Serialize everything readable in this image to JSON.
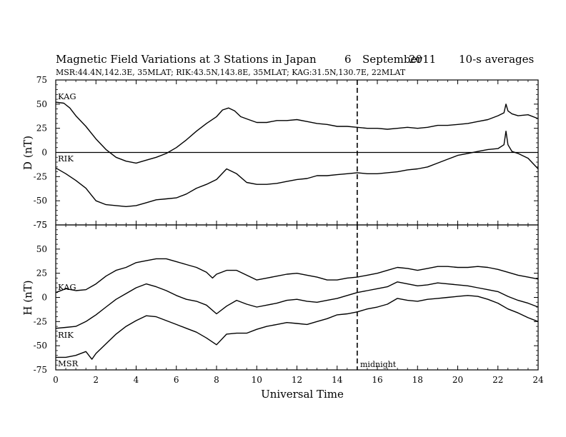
{
  "title": {
    "main": "Magnetic Field Variations at 3 Stations in Japan",
    "day": "6",
    "month": "September",
    "year": "2011",
    "note": "10-s averages"
  },
  "subtitle": "MSR:44.4N,142.3E, 35MLAT;  RIK:43.5N,143.8E, 35MLAT;  KAG:31.5N,130.7E, 22MLAT",
  "xlabel": "Universal Time",
  "annotation": "midnight",
  "colors": {
    "line": "#000000",
    "background": "#ffffff"
  },
  "chart_data": [
    {
      "type": "line",
      "ylabel": "D (nT)",
      "xlim": [
        0,
        24
      ],
      "ylim": [
        -75,
        75
      ],
      "xticks": [
        0,
        2,
        4,
        6,
        8,
        10,
        12,
        14,
        16,
        18,
        20,
        22,
        24
      ],
      "yticks": [
        -75,
        -50,
        -25,
        0,
        25,
        50,
        75
      ],
      "zero_line": true,
      "vline_x": 15,
      "series": [
        {
          "name": "KAG",
          "x": [
            0,
            0.4,
            0.7,
            1.0,
            1.5,
            2.0,
            2.5,
            3.0,
            3.5,
            4.0,
            4.5,
            5.0,
            5.5,
            6.0,
            6.5,
            7.0,
            7.5,
            8.0,
            8.3,
            8.6,
            8.9,
            9.2,
            9.6,
            10.0,
            10.5,
            11.0,
            11.5,
            12.0,
            12.5,
            13.0,
            13.5,
            14.0,
            14.5,
            15.0,
            15.5,
            16.0,
            16.5,
            17.0,
            17.5,
            18.0,
            18.5,
            19.0,
            19.5,
            20.0,
            20.5,
            21.0,
            21.5,
            22.0,
            22.3,
            22.4,
            22.5,
            22.7,
            23.0,
            23.5,
            24.0
          ],
          "y": [
            52,
            51,
            46,
            38,
            27,
            14,
            3,
            -5,
            -9,
            -11,
            -8,
            -5,
            -1,
            5,
            13,
            22,
            30,
            37,
            44,
            46,
            43,
            37,
            34,
            31,
            31,
            33,
            33,
            34,
            32,
            30,
            29,
            27,
            27,
            26,
            25,
            25,
            24,
            25,
            26,
            25,
            26,
            28,
            28,
            29,
            30,
            32,
            34,
            38,
            41,
            50,
            43,
            40,
            38,
            39,
            35
          ]
        },
        {
          "name": "RIK",
          "x": [
            0,
            0.5,
            1.0,
            1.5,
            2.0,
            2.5,
            3.0,
            3.5,
            4.0,
            4.5,
            5.0,
            5.5,
            6.0,
            6.5,
            7.0,
            7.5,
            8.0,
            8.5,
            9.0,
            9.5,
            10.0,
            10.5,
            11.0,
            11.5,
            12.0,
            12.5,
            13.0,
            13.5,
            14.0,
            14.5,
            15.0,
            15.5,
            16.0,
            16.5,
            17.0,
            17.5,
            18.0,
            18.5,
            19.0,
            19.5,
            20.0,
            20.5,
            21.0,
            21.5,
            22.0,
            22.3,
            22.4,
            22.5,
            22.7,
            23.0,
            23.5,
            24.0
          ],
          "y": [
            -16,
            -22,
            -29,
            -37,
            -50,
            -54,
            -55,
            -56,
            -55,
            -52,
            -49,
            -48,
            -47,
            -43,
            -37,
            -33,
            -28,
            -17,
            -22,
            -31,
            -33,
            -33,
            -32,
            -30,
            -28,
            -27,
            -24,
            -24,
            -23,
            -22,
            -21,
            -22,
            -22,
            -21,
            -20,
            -18,
            -17,
            -15,
            -11,
            -7,
            -3,
            -1,
            1,
            3,
            4,
            8,
            22,
            8,
            1,
            -1,
            -6,
            -17
          ]
        }
      ]
    },
    {
      "type": "line",
      "ylabel": "H (nT)",
      "xlim": [
        0,
        24
      ],
      "ylim": [
        -75,
        75
      ],
      "xticks": [
        0,
        2,
        4,
        6,
        8,
        10,
        12,
        14,
        16,
        18,
        20,
        22,
        24
      ],
      "xtick_labels": [
        "0",
        "2",
        "4",
        "6",
        "8",
        "10",
        "12",
        "14",
        "16",
        "18",
        "20",
        "22",
        "24"
      ],
      "yticks": [
        -75,
        -50,
        -25,
        0,
        25,
        50,
        75
      ],
      "vline_x": 15,
      "series": [
        {
          "name": "KAG",
          "x": [
            0,
            0.5,
            1.0,
            1.5,
            2.0,
            2.5,
            3.0,
            3.5,
            4.0,
            4.5,
            5.0,
            5.5,
            6.0,
            6.5,
            7.0,
            7.5,
            7.8,
            8.0,
            8.5,
            9.0,
            9.5,
            10.0,
            10.5,
            11.0,
            11.5,
            12.0,
            12.5,
            13.0,
            13.5,
            14.0,
            14.5,
            15.0,
            15.5,
            16.0,
            16.5,
            17.0,
            17.5,
            18.0,
            18.5,
            19.0,
            19.5,
            20.0,
            20.5,
            21.0,
            21.5,
            22.0,
            22.5,
            23.0,
            23.5,
            24.0
          ],
          "y": [
            5,
            9,
            7,
            8,
            14,
            22,
            28,
            31,
            36,
            38,
            40,
            40,
            37,
            34,
            31,
            26,
            20,
            24,
            28,
            28,
            23,
            18,
            20,
            22,
            24,
            25,
            23,
            21,
            18,
            18,
            20,
            21,
            23,
            25,
            28,
            31,
            30,
            28,
            30,
            32,
            32,
            31,
            31,
            32,
            31,
            29,
            26,
            23,
            21,
            19
          ]
        },
        {
          "name": "RIK",
          "x": [
            0,
            0.5,
            1.0,
            1.5,
            2.0,
            2.5,
            3.0,
            3.5,
            4.0,
            4.5,
            5.0,
            5.5,
            6.0,
            6.5,
            7.0,
            7.5,
            8.0,
            8.5,
            9.0,
            9.5,
            10.0,
            10.5,
            11.0,
            11.5,
            12.0,
            12.5,
            13.0,
            13.5,
            14.0,
            14.5,
            15.0,
            15.5,
            16.0,
            16.5,
            17.0,
            17.5,
            18.0,
            18.5,
            19.0,
            19.5,
            20.0,
            20.5,
            21.0,
            21.5,
            22.0,
            22.5,
            23.0,
            23.5,
            24.0
          ],
          "y": [
            -32,
            -31,
            -30,
            -25,
            -18,
            -10,
            -2,
            4,
            10,
            14,
            11,
            7,
            2,
            -2,
            -4,
            -8,
            -17,
            -9,
            -3,
            -7,
            -10,
            -8,
            -6,
            -3,
            -2,
            -4,
            -5,
            -3,
            -1,
            2,
            5,
            7,
            9,
            11,
            16,
            14,
            12,
            13,
            15,
            14,
            13,
            12,
            10,
            8,
            6,
            1,
            -3,
            -6,
            -10
          ]
        },
        {
          "name": "MSR",
          "x": [
            0,
            0.5,
            1.0,
            1.5,
            1.8,
            2.0,
            2.5,
            3.0,
            3.5,
            4.0,
            4.5,
            5.0,
            5.5,
            6.0,
            6.5,
            7.0,
            7.5,
            8.0,
            8.5,
            9.0,
            9.5,
            10.0,
            10.5,
            11.0,
            11.5,
            12.0,
            12.5,
            13.0,
            13.5,
            14.0,
            14.5,
            15.0,
            15.5,
            16.0,
            16.5,
            17.0,
            17.5,
            18.0,
            18.5,
            19.0,
            19.5,
            20.0,
            20.5,
            21.0,
            21.5,
            22.0,
            22.5,
            23.0,
            23.5,
            24.0
          ],
          "y": [
            -62,
            -62,
            -60,
            -56,
            -64,
            -58,
            -48,
            -38,
            -30,
            -24,
            -19,
            -20,
            -24,
            -28,
            -32,
            -36,
            -42,
            -49,
            -38,
            -37,
            -37,
            -33,
            -30,
            -28,
            -26,
            -27,
            -28,
            -25,
            -22,
            -18,
            -17,
            -15,
            -12,
            -10,
            -7,
            -1,
            -3,
            -4,
            -2,
            -1,
            0,
            1,
            2,
            1,
            -2,
            -6,
            -12,
            -16,
            -21,
            -25
          ]
        }
      ]
    }
  ]
}
